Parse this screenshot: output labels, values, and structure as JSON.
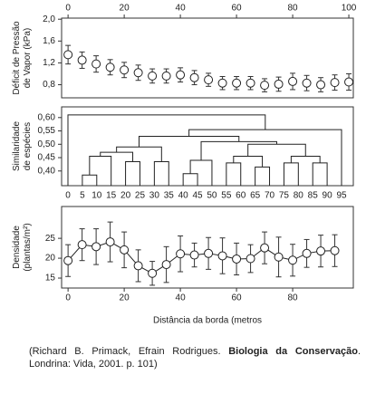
{
  "chart_data": [
    {
      "type": "errorbar",
      "ylabel": [
        "Déficit de Pressão",
        "de Vapor (kPa)"
      ],
      "x": [
        0,
        5,
        10,
        15,
        20,
        25,
        30,
        35,
        40,
        45,
        50,
        55,
        60,
        65,
        70,
        75,
        80,
        85,
        90,
        95,
        100
      ],
      "values": [
        1.35,
        1.25,
        1.18,
        1.12,
        1.07,
        1.02,
        0.96,
        0.96,
        0.98,
        0.93,
        0.89,
        0.83,
        0.83,
        0.83,
        0.79,
        0.81,
        0.86,
        0.83,
        0.8,
        0.84,
        0.85
      ],
      "errors": [
        0.17,
        0.15,
        0.15,
        0.14,
        0.14,
        0.14,
        0.13,
        0.13,
        0.13,
        0.13,
        0.12,
        0.12,
        0.12,
        0.12,
        0.12,
        0.13,
        0.15,
        0.14,
        0.13,
        0.14,
        0.15
      ],
      "xlim": [
        -2.3,
        101.6
      ],
      "xticks": [
        0,
        20,
        40,
        60,
        80,
        100
      ],
      "xaxis": "top",
      "ylim": [
        0.56,
        2.02
      ],
      "yticks": [
        {
          "value": 0.8,
          "label": "0,8"
        },
        {
          "value": 1.2,
          "label": "1,2"
        },
        {
          "value": 1.6,
          "label": "1,6"
        },
        {
          "value": 2.0,
          "label": "2,0"
        }
      ]
    },
    {
      "type": "dendrogram",
      "ylabel": [
        "Similaridade",
        "de espécies"
      ],
      "categories": [
        "0",
        "5",
        "10",
        "15",
        "20",
        "25",
        "30",
        "35",
        "40",
        "45",
        "50",
        "55",
        "60",
        "65",
        "70",
        "75",
        "80",
        "85",
        "90",
        "95"
      ],
      "merges": [
        [
          1,
          2,
          0.385
        ],
        [
          4,
          5,
          0.435
        ],
        [
          6,
          7,
          0.435
        ],
        [
          8,
          9,
          0.39
        ],
        [
          11,
          12,
          0.43
        ],
        [
          13,
          14,
          0.415
        ],
        [
          15,
          16,
          0.43
        ],
        [
          17,
          18,
          0.43
        ],
        [
          20,
          3,
          0.455
        ],
        [
          28,
          21,
          0.47
        ],
        [
          29,
          22,
          0.49
        ],
        [
          23,
          10,
          0.44
        ],
        [
          24,
          25,
          0.455
        ],
        [
          26,
          27,
          0.455
        ],
        [
          32,
          33,
          0.5
        ],
        [
          31,
          34,
          0.51
        ],
        [
          30,
          35,
          0.53
        ],
        [
          36,
          19,
          0.555
        ],
        [
          0,
          37,
          0.61
        ]
      ],
      "ylim": [
        0.345,
        0.64
      ],
      "yticks": [
        {
          "value": 0.4,
          "label": "0,40"
        },
        {
          "value": 0.45,
          "label": "0,45"
        },
        {
          "value": 0.5,
          "label": "0,50"
        },
        {
          "value": 0.55,
          "label": "0,55"
        },
        {
          "value": 0.6,
          "label": "0,60"
        }
      ]
    },
    {
      "type": "line",
      "ylabel": [
        "Densidade",
        "(plantas/m²)"
      ],
      "xlabel": "Distância da borda (metros",
      "x": [
        0,
        5,
        10,
        15,
        20,
        25,
        30,
        35,
        40,
        45,
        50,
        55,
        60,
        65,
        70,
        75,
        80,
        85,
        90,
        95
      ],
      "values": [
        19.4,
        23.4,
        22.9,
        24.1,
        22.1,
        18.1,
        16.2,
        18.4,
        21.1,
        20.8,
        21.2,
        20.6,
        19.8,
        19.9,
        22.6,
        20.3,
        19.5,
        21.2,
        21.8,
        21.9
      ],
      "errors": [
        4,
        4,
        4.5,
        5,
        4.5,
        4,
        3,
        4.5,
        4.5,
        3,
        4,
        4.5,
        4,
        3.5,
        4,
        5,
        4,
        3.5,
        4,
        4
      ],
      "xlim": [
        -2.3,
        101.6
      ],
      "xticks": [
        0,
        20,
        40,
        60,
        80
      ],
      "ylim": [
        12.5,
        33
      ],
      "yticks": [
        15,
        20,
        25
      ]
    }
  ],
  "source": [
    "(Richard B. Primack, Efrain Rodrigues. ",
    "Biologia da Conservação",
    ". Londrina: Vida, 2001. p. 101)"
  ]
}
